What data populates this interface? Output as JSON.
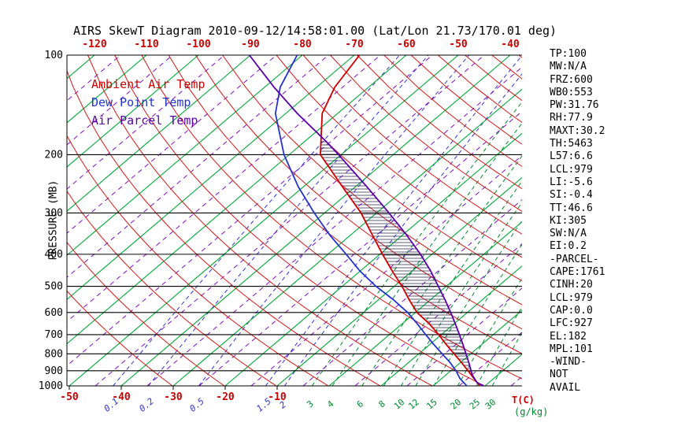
{
  "title": "AIRS SkewT Diagram 2010-09-12/14:58:01.00 (Lat/Lon 21.73/170.01 deg)",
  "legend": {
    "ambient": "Ambient Air Temp",
    "dew": "Dew Point Temp",
    "parcel": "Air Parcel Temp"
  },
  "colors": {
    "ambient": "#cc0000",
    "dew": "#2233cc",
    "parcel": "#5a00a8",
    "isotherm": "#00a838",
    "dry_adiabat": "#d01818",
    "iso_dashed": "#7a00c0",
    "mix_small": "#3333c8",
    "mix_large": "#008830",
    "pressure_line": "#000000",
    "hatch": "#26264d",
    "tick_red": "#cc0000"
  },
  "pressure_axis": {
    "label": "PRESSURE (MB)",
    "ticks": [
      100,
      200,
      300,
      400,
      500,
      600,
      700,
      800,
      900,
      1000
    ]
  },
  "top_axis": {
    "ticks": [
      -120,
      -110,
      -100,
      -90,
      -80,
      -70,
      -60,
      -50,
      -40
    ]
  },
  "bottom_axis": {
    "temp_ticks": [
      -50,
      -40,
      -30,
      -20,
      -10
    ],
    "temp_unit": "T(C)",
    "mix_unit": "(g/kg)"
  },
  "stats": [
    "TP:100",
    "MW:N/A",
    "FRZ:600",
    "WB0:553",
    "PW:31.76",
    "RH:77.9",
    "MAXT:30.2",
    "TH:5463",
    "L57:6.6",
    "LCL:979",
    "LI:-5.6",
    "SI:-0.4",
    "TT:46.6",
    "KI:305",
    "SW:N/A",
    "EI:0.2",
    "-PARCEL-",
    "CAPE:1761",
    "CINH:20",
    "LCL:979",
    "CAP:0.0",
    "LFC:927",
    "EL:182",
    "MPL:101",
    "-WIND-",
    "NOT",
    "AVAIL"
  ],
  "chart_data": {
    "type": "line",
    "variant": "skew-t-log-p",
    "title": "AIRS SkewT Diagram 2010-09-12/14:58:01.00 (Lat/Lon 21.73/170.01 deg)",
    "xlabel": "T(C)",
    "ylabel": "PRESSURE (MB)",
    "y_scale": "log",
    "ylim": [
      1000,
      100
    ],
    "grid": {
      "isotherms_C": {
        "start": -150,
        "end": 40,
        "step": 10
      },
      "intermediate_isotherms_offset": 5,
      "dry_adiabats_K": {
        "start": 243,
        "end": 453,
        "step": 10
      },
      "mixing_ratio_small_gkg": [
        0.1,
        0.2,
        0.5,
        1.5,
        2
      ],
      "mixing_ratio_large_gkg": [
        3,
        4,
        6,
        8,
        10,
        12,
        15,
        20,
        25,
        30
      ]
    },
    "series": [
      {
        "name": "Ambient Air Temp",
        "color_key": "ambient",
        "points": [
          [
            1000,
            29
          ],
          [
            950,
            26.2
          ],
          [
            900,
            23.3
          ],
          [
            850,
            20.2
          ],
          [
            800,
            16.8
          ],
          [
            750,
            13.2
          ],
          [
            700,
            9.5
          ],
          [
            650,
            5.3
          ],
          [
            600,
            0.3
          ],
          [
            550,
            -4.0
          ],
          [
            500,
            -8.5
          ],
          [
            450,
            -13.8
          ],
          [
            400,
            -19.5
          ],
          [
            350,
            -25.8
          ],
          [
            300,
            -33
          ],
          [
            250,
            -42.5
          ],
          [
            200,
            -54
          ],
          [
            150,
            -63
          ],
          [
            125,
            -66.5
          ],
          [
            100,
            -69
          ]
        ]
      },
      {
        "name": "Dew Point Temp",
        "color_key": "dew",
        "points": [
          [
            1000,
            26.5
          ],
          [
            950,
            23.5
          ],
          [
            900,
            21
          ],
          [
            850,
            18
          ],
          [
            800,
            14.5
          ],
          [
            750,
            10.8
          ],
          [
            700,
            7
          ],
          [
            650,
            3
          ],
          [
            600,
            -1.5
          ],
          [
            550,
            -7
          ],
          [
            500,
            -13.5
          ],
          [
            450,
            -20
          ],
          [
            400,
            -26.5
          ],
          [
            350,
            -34
          ],
          [
            300,
            -42
          ],
          [
            250,
            -51
          ],
          [
            200,
            -61
          ],
          [
            150,
            -72
          ],
          [
            125,
            -77
          ],
          [
            100,
            -81
          ]
        ]
      },
      {
        "name": "Air Parcel Temp",
        "color_key": "parcel",
        "points": [
          [
            1000,
            29.8
          ],
          [
            979,
            27.8
          ],
          [
            950,
            26.3
          ],
          [
            927,
            25.1
          ],
          [
            900,
            23.9
          ],
          [
            850,
            21.6
          ],
          [
            800,
            19.1
          ],
          [
            750,
            16.4
          ],
          [
            700,
            13.5
          ],
          [
            650,
            10.3
          ],
          [
            600,
            6.8
          ],
          [
            550,
            2.9
          ],
          [
            500,
            -1.5
          ],
          [
            450,
            -6.4
          ],
          [
            400,
            -12.2
          ],
          [
            350,
            -19.2
          ],
          [
            300,
            -27.6
          ],
          [
            250,
            -37.8
          ],
          [
            200,
            -50.5
          ],
          [
            182,
            -56
          ],
          [
            150,
            -67.8
          ],
          [
            125,
            -78.2
          ],
          [
            100,
            -90.2
          ]
        ]
      }
    ],
    "cape_hatch": {
      "from_hPa": 927,
      "to_hPa": 182,
      "between": [
        "Ambient Air Temp",
        "Air Parcel Temp"
      ]
    }
  }
}
